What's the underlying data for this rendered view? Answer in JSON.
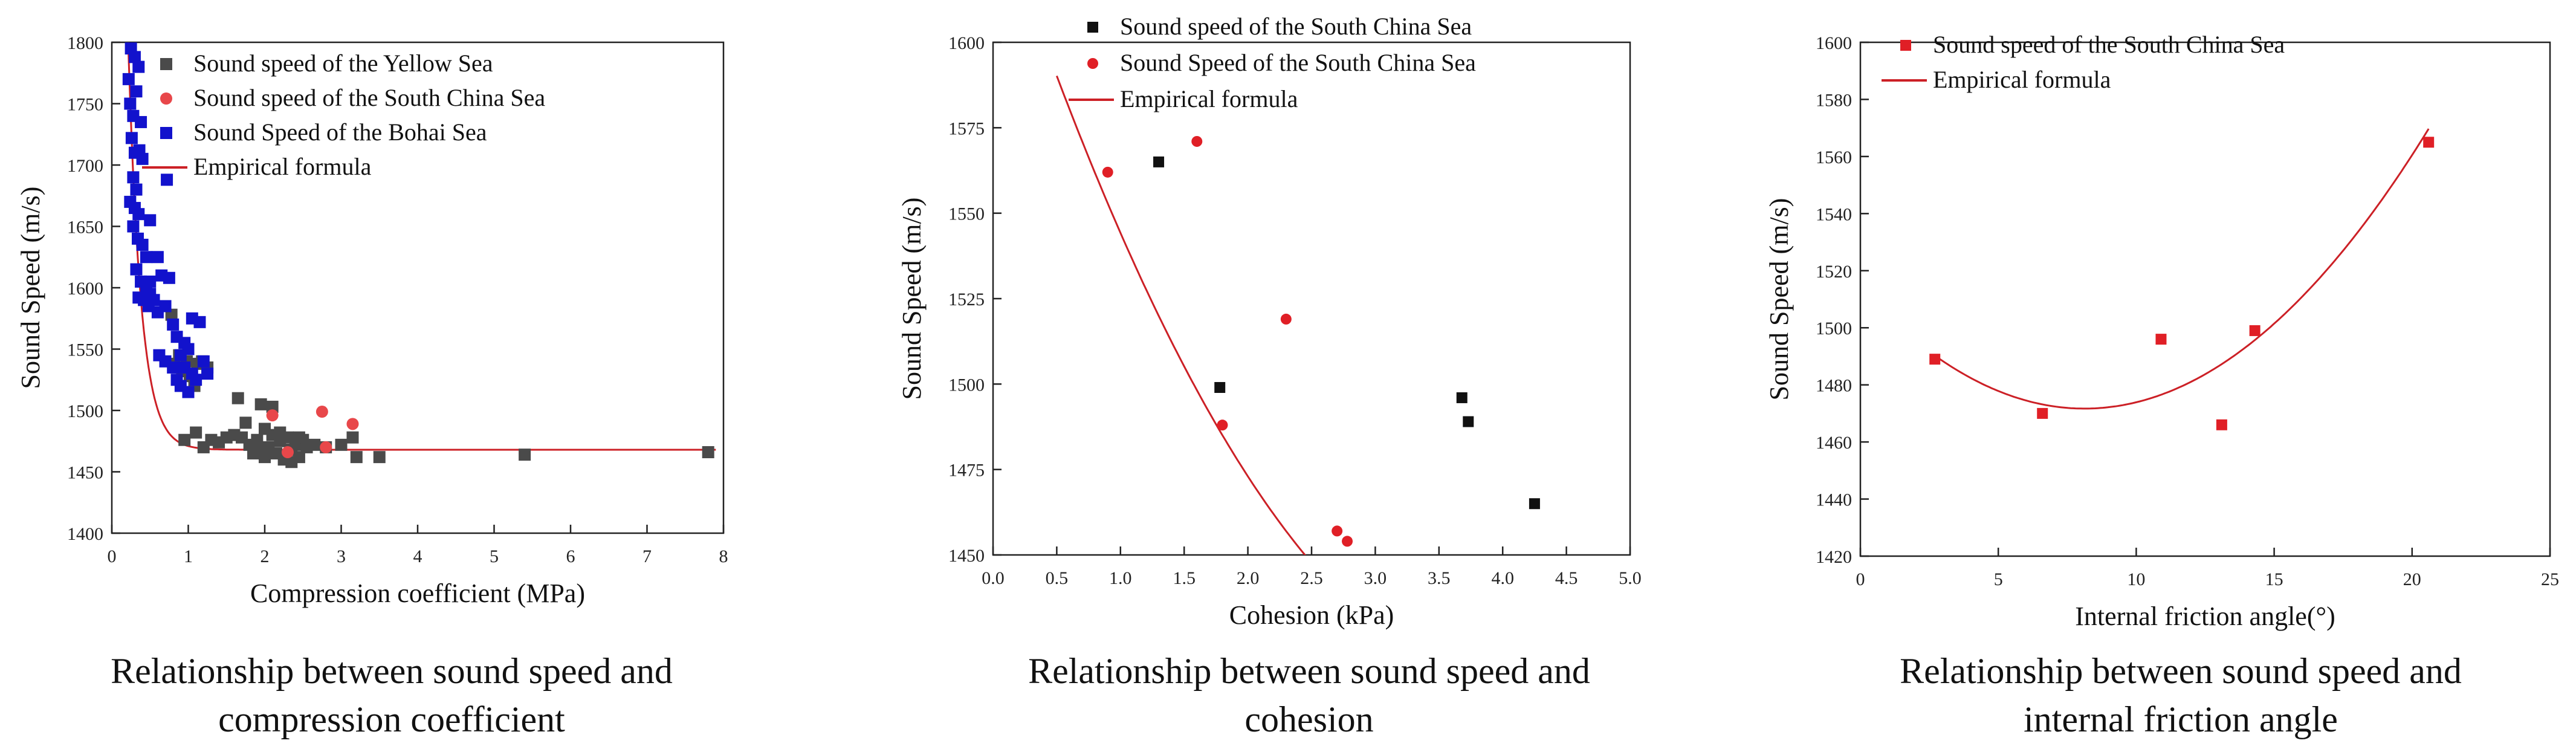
{
  "charts": [
    {
      "type": "scatter",
      "caption_line1": "Relationship between sound speed and",
      "caption_line2": "compression coefficient",
      "xlabel": "Compression coefficient (MPa)",
      "ylabel": "Sound Speed (m/s)",
      "xlim": [
        0,
        8
      ],
      "ylim": [
        1400,
        1800
      ],
      "xticks": [
        "0",
        "1",
        "2",
        "3",
        "4",
        "5",
        "6",
        "7",
        "8"
      ],
      "yticks": [
        "1400",
        "1450",
        "1500",
        "1550",
        "1600",
        "1650",
        "1700",
        "1750",
        "1800"
      ],
      "series": [
        {
          "name": "Sound speed of the Yellow Sea",
          "marker": "square",
          "color": "#4a4a4a",
          "points": [
            [
              0.78,
              1578
            ],
            [
              0.82,
              1538
            ],
            [
              0.88,
              1545
            ],
            [
              0.92,
              1532
            ],
            [
              0.98,
              1540
            ],
            [
              1.02,
              1528
            ],
            [
              1.08,
              1520
            ],
            [
              1.12,
              1538
            ],
            [
              1.18,
              1540
            ],
            [
              1.25,
              1535
            ],
            [
              0.95,
              1476
            ],
            [
              1.1,
              1482
            ],
            [
              1.2,
              1470
            ],
            [
              1.3,
              1476
            ],
            [
              1.4,
              1474
            ],
            [
              1.5,
              1478
            ],
            [
              1.6,
              1480
            ],
            [
              1.65,
              1510
            ],
            [
              1.7,
              1478
            ],
            [
              1.75,
              1490
            ],
            [
              1.8,
              1472
            ],
            [
              1.85,
              1465
            ],
            [
              1.9,
              1476
            ],
            [
              1.95,
              1505
            ],
            [
              2.0,
              1485
            ],
            [
              2.05,
              1470
            ],
            [
              2.1,
              1480
            ],
            [
              2.1,
              1503
            ],
            [
              2.15,
              1465
            ],
            [
              2.2,
              1475
            ],
            [
              2.25,
              1460
            ],
            [
              2.3,
              1478
            ],
            [
              2.35,
              1468
            ],
            [
              2.4,
              1472
            ],
            [
              2.45,
              1462
            ],
            [
              2.5,
              1476
            ],
            [
              2.55,
              1470
            ],
            [
              2.0,
              1462
            ],
            [
              2.2,
              1482
            ],
            [
              2.35,
              1458
            ],
            [
              1.9,
              1470
            ],
            [
              2.45,
              1478
            ],
            [
              2.65,
              1472
            ],
            [
              2.8,
              1470
            ],
            [
              3.0,
              1472
            ],
            [
              3.15,
              1478
            ],
            [
              3.2,
              1462
            ],
            [
              3.5,
              1462
            ],
            [
              5.4,
              1464
            ],
            [
              7.8,
              1466
            ]
          ]
        },
        {
          "name": "Sound speed of the South China Sea",
          "marker": "circle",
          "color": "#e8474a",
          "points": [
            [
              2.1,
              1496
            ],
            [
              2.3,
              1466
            ],
            [
              2.75,
              1499
            ],
            [
              2.8,
              1470
            ],
            [
              3.15,
              1489
            ]
          ]
        },
        {
          "name": "Sound Speed of the Bohai Sea",
          "marker": "square",
          "color": "#1212cc",
          "points": [
            [
              0.22,
              1770
            ],
            [
              0.25,
              1795
            ],
            [
              0.3,
              1788
            ],
            [
              0.35,
              1780
            ],
            [
              0.24,
              1750
            ],
            [
              0.28,
              1740
            ],
            [
              0.32,
              1760
            ],
            [
              0.38,
              1735
            ],
            [
              0.26,
              1722
            ],
            [
              0.3,
              1710
            ],
            [
              0.36,
              1712
            ],
            [
              0.4,
              1705
            ],
            [
              0.28,
              1690
            ],
            [
              0.32,
              1680
            ],
            [
              0.24,
              1670
            ],
            [
              0.3,
              1665
            ],
            [
              0.35,
              1660
            ],
            [
              0.28,
              1650
            ],
            [
              0.34,
              1640
            ],
            [
              0.4,
              1635
            ],
            [
              0.45,
              1625
            ],
            [
              0.5,
              1655
            ],
            [
              0.32,
              1615
            ],
            [
              0.38,
              1605
            ],
            [
              0.45,
              1600
            ],
            [
              0.5,
              1595
            ],
            [
              0.6,
              1625
            ],
            [
              0.65,
              1610
            ],
            [
              0.42,
              1590
            ],
            [
              0.48,
              1585
            ],
            [
              0.55,
              1590
            ],
            [
              0.6,
              1580
            ],
            [
              0.35,
              1592
            ],
            [
              0.72,
              1688
            ],
            [
              0.75,
              1608
            ],
            [
              0.7,
              1585
            ],
            [
              0.8,
              1570
            ],
            [
              0.85,
              1560
            ],
            [
              0.9,
              1545
            ],
            [
              0.95,
              1535
            ],
            [
              1.0,
              1550
            ],
            [
              1.05,
              1530
            ],
            [
              0.62,
              1545
            ],
            [
              0.7,
              1540
            ],
            [
              0.8,
              1535
            ],
            [
              0.85,
              1525
            ],
            [
              0.9,
              1520
            ],
            [
              1.0,
              1515
            ],
            [
              1.05,
              1575
            ],
            [
              1.15,
              1572
            ],
            [
              1.2,
              1540
            ],
            [
              1.1,
              1525
            ],
            [
              1.25,
              1530
            ],
            [
              0.95,
              1555
            ],
            [
              0.5,
              1605
            ]
          ]
        }
      ],
      "fit": {
        "name": "Empirical formula",
        "color": "#cc2026",
        "type": "exp",
        "y0": 1468,
        "a": 1200,
        "b": 6.0
      }
    },
    {
      "type": "scatter",
      "caption_line1": "Relationship between sound speed and",
      "caption_line2": "cohesion",
      "xlabel": "Cohesion (kPa)",
      "ylabel": "Sound Speed (m/s)",
      "xlim": [
        0,
        5
      ],
      "ylim": [
        1450,
        1600
      ],
      "xticks": [
        "0.0",
        "0.5",
        "1.0",
        "1.5",
        "2.0",
        "2.5",
        "3.0",
        "3.5",
        "4.0",
        "4.5",
        "5.0"
      ],
      "yticks": [
        "1450",
        "1475",
        "1500",
        "1525",
        "1550",
        "1575",
        "1600"
      ],
      "series": [
        {
          "name": "Sound speed of the South China Sea",
          "marker": "square",
          "color": "#111111",
          "points": [
            [
              1.3,
              1565
            ],
            [
              1.78,
              1499
            ],
            [
              3.68,
              1496
            ],
            [
              3.73,
              1489
            ],
            [
              4.25,
              1465
            ]
          ]
        },
        {
          "name": "Sound Speed of the South China Sea",
          "marker": "circle",
          "color": "#e01f26",
          "points": [
            [
              0.9,
              1562
            ],
            [
              1.6,
              1571
            ],
            [
              1.8,
              1488
            ],
            [
              2.3,
              1519
            ],
            [
              2.7,
              1457
            ],
            [
              2.78,
              1454
            ]
          ]
        }
      ],
      "fit": {
        "name": "Empirical formula",
        "color": "#cc2026",
        "type": "quad",
        "xmin": 0.5,
        "xmax": 4.5,
        "c": [
          1643,
          -112.5,
          13.75
        ]
      }
    },
    {
      "type": "scatter",
      "caption_line1": "Relationship between sound speed and",
      "caption_line2": "internal friction angle",
      "xlabel": "Internal friction angle(°)",
      "ylabel": "Sound Speed (m/s)",
      "xlim": [
        0,
        25
      ],
      "ylim": [
        1420,
        1600
      ],
      "xticks": [
        "0",
        "5",
        "10",
        "15",
        "20",
        "25"
      ],
      "yticks": [
        "1420",
        "1440",
        "1460",
        "1480",
        "1500",
        "1520",
        "1540",
        "1560",
        "1580",
        "1600"
      ],
      "series": [
        {
          "name": "Sound speed of the South China Sea",
          "marker": "square",
          "color": "#e01f26",
          "points": [
            [
              2.7,
              1489
            ],
            [
              6.6,
              1470
            ],
            [
              10.9,
              1496
            ],
            [
              13.1,
              1466
            ],
            [
              14.3,
              1499
            ],
            [
              20.6,
              1565
            ]
          ]
        }
      ],
      "fit": {
        "name": "Empirical formula",
        "color": "#cc2026",
        "type": "quad",
        "xmin": 2.7,
        "xmax": 20.6,
        "c": [
          1513.3,
          -10.24,
          0.63
        ]
      }
    }
  ]
}
